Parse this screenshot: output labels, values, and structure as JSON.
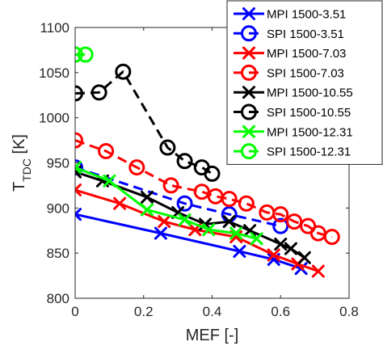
{
  "chart_data": {
    "type": "line",
    "xlabel": "MEF [-]",
    "ylabel": {
      "main": "T",
      "sub": "TDC",
      "unit": " [K]"
    },
    "xlim": [
      0,
      0.8
    ],
    "ylim": [
      800,
      1100
    ],
    "xticks": [
      0,
      0.2,
      0.4,
      0.6,
      0.8
    ],
    "xtick_labels": [
      "0",
      "0.2",
      "0.4",
      "0.6",
      "0.8"
    ],
    "yticks": [
      800,
      850,
      900,
      950,
      1000,
      1050,
      1100
    ],
    "ytick_labels": [
      "800",
      "850",
      "900",
      "950",
      "1000",
      "1050",
      "1100"
    ],
    "grid": false,
    "legend_position": "top-right",
    "series": [
      {
        "name": "MPI 1500-3.51",
        "color": "#0000ff",
        "marker": "x",
        "dashed": false,
        "x": [
          0.0,
          0.25,
          0.48,
          0.58,
          0.66
        ],
        "y": [
          893,
          872,
          852,
          843,
          833
        ]
      },
      {
        "name": "SPI 1500-3.51",
        "color": "#0000ff",
        "marker": "o",
        "dashed": true,
        "x": [
          0.0,
          0.32,
          0.45,
          0.6
        ],
        "y": [
          945,
          905,
          893,
          880
        ]
      },
      {
        "name": "MPI 1500-7.03",
        "color": "#ff0000",
        "marker": "x",
        "dashed": false,
        "x": [
          0.0,
          0.13,
          0.26,
          0.35,
          0.47,
          0.58,
          0.65,
          0.71
        ],
        "y": [
          920,
          905,
          885,
          876,
          868,
          848,
          838,
          830
        ]
      },
      {
        "name": "SPI 1500-7.03",
        "color": "#ff0000",
        "marker": "o",
        "dashed": true,
        "x": [
          0.0,
          0.09,
          0.18,
          0.28,
          0.37,
          0.41,
          0.45,
          0.5,
          0.56,
          0.6,
          0.64,
          0.68,
          0.71,
          0.75
        ],
        "y": [
          975,
          963,
          945,
          925,
          918,
          913,
          910,
          905,
          895,
          893,
          885,
          880,
          872,
          868
        ]
      },
      {
        "name": "MPI 1500-10.55",
        "color": "#000000",
        "marker": "x",
        "dashed": false,
        "x": [
          0.0,
          0.08,
          0.21,
          0.3,
          0.38,
          0.45,
          0.51,
          0.6,
          0.63,
          0.67
        ],
        "y": [
          940,
          930,
          912,
          895,
          882,
          885,
          875,
          860,
          855,
          845
        ]
      },
      {
        "name": "SPI 1500-10.55",
        "color": "#000000",
        "marker": "o",
        "dashed": true,
        "x": [
          0.0,
          0.07,
          0.14,
          0.27,
          0.32,
          0.37,
          0.4
        ],
        "y": [
          1027,
          1028,
          1051,
          967,
          952,
          945,
          938
        ]
      },
      {
        "name": "MPI 1500-12.31",
        "color": "#00ff00",
        "marker": "x",
        "dashed": false,
        "x": [
          0.0,
          0.1,
          0.21,
          0.32,
          0.39,
          0.47,
          0.53
        ],
        "y": [
          945,
          930,
          898,
          887,
          876,
          872,
          866
        ]
      },
      {
        "name": "SPI 1500-12.31",
        "color": "#00ff00",
        "marker": "o",
        "dashed": true,
        "x": [
          0.0,
          0.03
        ],
        "y": [
          1070,
          1070
        ]
      }
    ]
  }
}
